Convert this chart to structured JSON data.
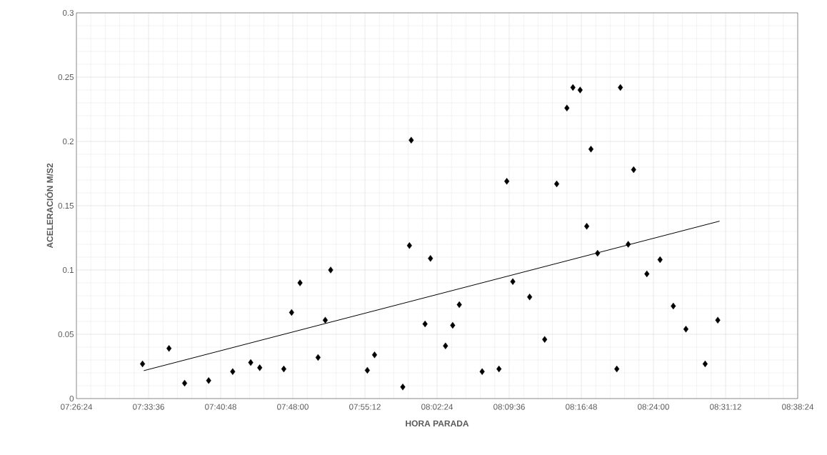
{
  "chart_data": {
    "type": "scatter",
    "xlabel": "HORA PARADA",
    "ylabel": "ACELERACIÓN M/S2",
    "xlim": [
      7.44,
      8.64
    ],
    "ylim": [
      0,
      0.3
    ],
    "xticks": [
      {
        "value": 7.44,
        "label": "07:26:24"
      },
      {
        "value": 7.56,
        "label": "07:33:36"
      },
      {
        "value": 7.68,
        "label": "07:40:48"
      },
      {
        "value": 7.8,
        "label": "07:48:00"
      },
      {
        "value": 7.92,
        "label": "07:55:12"
      },
      {
        "value": 8.04,
        "label": "08:02:24"
      },
      {
        "value": 8.16,
        "label": "08:09:36"
      },
      {
        "value": 8.28,
        "label": "08:16:48"
      },
      {
        "value": 8.4,
        "label": "08:24:00"
      },
      {
        "value": 8.52,
        "label": "08:31:12"
      },
      {
        "value": 8.64,
        "label": "08:38:24"
      }
    ],
    "yticks": [
      0,
      0.05,
      0.1,
      0.15,
      0.2,
      0.25,
      0.3
    ],
    "grid": true,
    "series": [
      {
        "color": "#000000",
        "marker": "diamond",
        "x": [
          7.55,
          7.594,
          7.62,
          7.66,
          7.7,
          7.73,
          7.745,
          7.785,
          7.798,
          7.812,
          7.842,
          7.854,
          7.863,
          7.924,
          7.936,
          7.983,
          7.994,
          7.997,
          8.02,
          8.029,
          8.054,
          8.066,
          8.077,
          8.115,
          8.143,
          8.156,
          8.166,
          8.194,
          8.219,
          8.239,
          8.256,
          8.266,
          8.278,
          8.289,
          8.296,
          8.307,
          8.339,
          8.345,
          8.358,
          8.367,
          8.389,
          8.411,
          8.433,
          8.454,
          8.486,
          8.507
        ],
        "values": [
          0.027,
          0.039,
          0.012,
          0.014,
          0.021,
          0.028,
          0.024,
          0.023,
          0.067,
          0.09,
          0.032,
          0.061,
          0.1,
          0.022,
          0.034,
          0.009,
          0.119,
          0.201,
          0.058,
          0.109,
          0.041,
          0.057,
          0.073,
          0.021,
          0.023,
          0.169,
          0.091,
          0.079,
          0.046,
          0.167,
          0.226,
          0.242,
          0.24,
          0.134,
          0.194,
          0.113,
          0.023,
          0.242,
          0.12,
          0.178,
          0.097,
          0.108,
          0.072,
          0.054,
          0.027,
          0.061
        ]
      },
      {
        "type": "line",
        "color": "#000000",
        "marker": "none",
        "line_style": "solid",
        "x": [
          7.552,
          8.51
        ],
        "values": [
          0.0217,
          0.138
        ]
      }
    ]
  }
}
